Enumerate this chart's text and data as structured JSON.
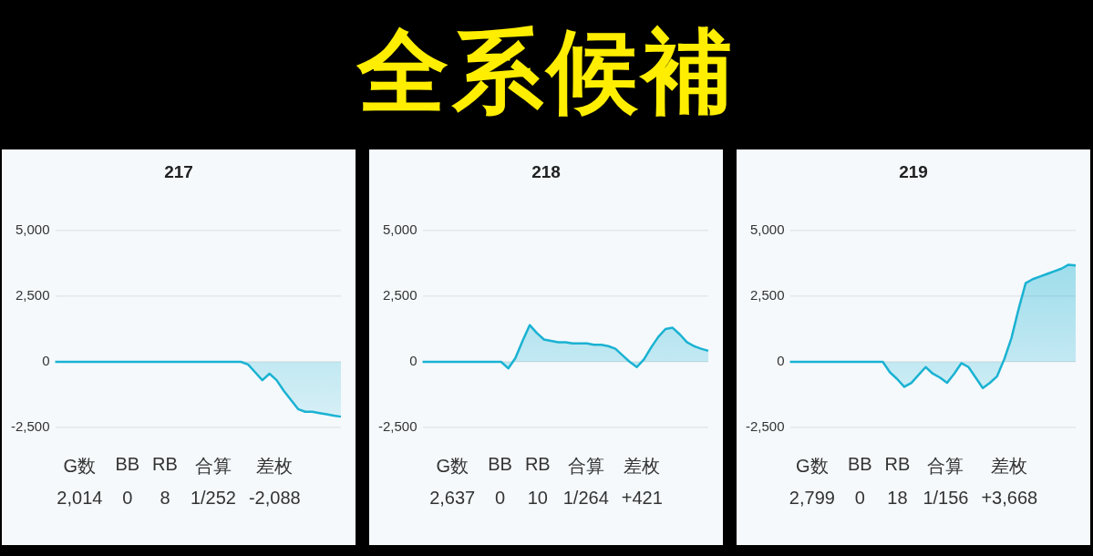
{
  "chart_data": [
    {
      "type": "other",
      "title": "全系候補"
    },
    {
      "type": "area",
      "title": "217",
      "categories": [
        null,
        null,
        null,
        null,
        null,
        null,
        null,
        null,
        null,
        null,
        null,
        null,
        null,
        null,
        null,
        null,
        null,
        null,
        null,
        null,
        null,
        null,
        null,
        null,
        null,
        null,
        null,
        null,
        null,
        null,
        null,
        null,
        null,
        null,
        null,
        null,
        null,
        null,
        null,
        null,
        null
      ],
      "series": [
        {
          "color": "#1ab2d2",
          "values": [
            0,
            0,
            0,
            0,
            0,
            0,
            0,
            0,
            0,
            0,
            0,
            0,
            0,
            0,
            0,
            0,
            0,
            0,
            0,
            0,
            0,
            0,
            0,
            0,
            0,
            0,
            0,
            -100,
            -400,
            -700,
            -450,
            -700,
            -1100,
            -1450,
            -1800,
            -1900,
            -1900,
            -1950,
            -2000,
            -2050,
            -2088
          ]
        }
      ],
      "ylim": [
        -2500,
        5000
      ],
      "yticks": [
        {
          "value": -2500,
          "label": "-2,500"
        },
        {
          "value": 0,
          "label": "0"
        },
        {
          "value": 2500,
          "label": "2,500"
        },
        {
          "value": 5000,
          "label": "5,000"
        }
      ],
      "grid": "y",
      "tick_labels": "y",
      "marker": "none",
      "annotations": [
        "G数",
        "BB",
        "RB",
        "合算",
        "差枚",
        "2,014",
        "0",
        "8",
        "1/252",
        "-2,088"
      ]
    },
    {
      "type": "area",
      "title": "218",
      "categories": [
        null,
        null,
        null,
        null,
        null,
        null,
        null,
        null,
        null,
        null,
        null,
        null,
        null,
        null,
        null,
        null,
        null,
        null,
        null,
        null,
        null,
        null,
        null,
        null,
        null,
        null,
        null,
        null,
        null,
        null,
        null,
        null,
        null,
        null,
        null,
        null,
        null,
        null,
        null,
        null,
        null
      ],
      "series": [
        {
          "color": "#1ab2d2",
          "values": [
            0,
            0,
            0,
            0,
            0,
            0,
            0,
            0,
            0,
            0,
            0,
            0,
            -250,
            150,
            800,
            1400,
            1100,
            850,
            800,
            750,
            750,
            700,
            700,
            700,
            650,
            650,
            600,
            500,
            250,
            0,
            -200,
            100,
            550,
            950,
            1250,
            1300,
            1050,
            750,
            600,
            500,
            421
          ]
        }
      ],
      "ylim": [
        -2500,
        5000
      ],
      "yticks": [
        {
          "value": -2500,
          "label": "-2,500"
        },
        {
          "value": 0,
          "label": "0"
        },
        {
          "value": 2500,
          "label": "2,500"
        },
        {
          "value": 5000,
          "label": "5,000"
        }
      ],
      "grid": "y",
      "tick_labels": "y",
      "marker": "none",
      "annotations": [
        "G数",
        "BB",
        "RB",
        "合算",
        "差枚",
        "2,637",
        "0",
        "10",
        "1/264",
        "+421"
      ]
    },
    {
      "type": "area",
      "title": "219",
      "categories": [
        null,
        null,
        null,
        null,
        null,
        null,
        null,
        null,
        null,
        null,
        null,
        null,
        null,
        null,
        null,
        null,
        null,
        null,
        null,
        null,
        null,
        null,
        null,
        null,
        null,
        null,
        null,
        null,
        null,
        null,
        null,
        null,
        null,
        null,
        null,
        null,
        null,
        null,
        null,
        null,
        null
      ],
      "series": [
        {
          "color": "#1ab2d2",
          "values": [
            0,
            0,
            0,
            0,
            0,
            0,
            0,
            0,
            0,
            0,
            0,
            0,
            0,
            0,
            -400,
            -650,
            -950,
            -800,
            -500,
            -200,
            -450,
            -600,
            -800,
            -450,
            -50,
            -200,
            -600,
            -1000,
            -800,
            -550,
            100,
            900,
            2000,
            3000,
            3150,
            3250,
            3350,
            3450,
            3550,
            3700,
            3668
          ]
        }
      ],
      "ylim": [
        -2500,
        5000
      ],
      "yticks": [
        {
          "value": -2500,
          "label": "-2,500"
        },
        {
          "value": 0,
          "label": "0"
        },
        {
          "value": 2500,
          "label": "2,500"
        },
        {
          "value": 5000,
          "label": "5,000"
        }
      ],
      "grid": "y",
      "tick_labels": "y",
      "marker": "none",
      "annotations": [
        "G数",
        "BB",
        "RB",
        "合算",
        "差枚",
        "2,799",
        "0",
        "18",
        "1/156",
        "+3,668"
      ]
    }
  ]
}
